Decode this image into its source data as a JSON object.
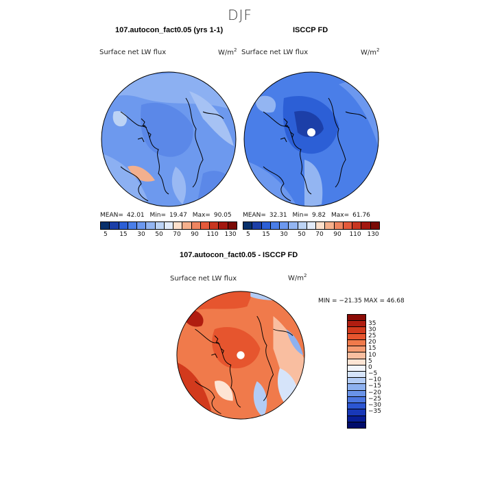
{
  "title": "DJF",
  "panels": [
    {
      "title": "107.autocon_fact0.05 (yrs 1-1)",
      "variable": "Surface net LW flux",
      "units_base": "W/m",
      "units_exp": "2",
      "stats": {
        "mean_label": "MEAN=",
        "mean": "42.01",
        "min_label": "Min=",
        "min": "19.47",
        "max_label": "Max=",
        "max": "90.05"
      }
    },
    {
      "title": "ISCCP FD",
      "variable": "Surface net LW flux",
      "units_base": "W/m",
      "units_exp": "2",
      "stats": {
        "mean_label": "MEAN=",
        "mean": "32.31",
        "min_label": "Min=",
        "min": "9.82",
        "max_label": "Max=",
        "max": "61.76"
      }
    }
  ],
  "top_colorbar": {
    "colors": [
      "#08306b",
      "#1c3fa8",
      "#2c5fd6",
      "#4a7ee8",
      "#6c98ef",
      "#93b5f2",
      "#bcd3f5",
      "#e2ebfa",
      "#fde0cc",
      "#f6b08c",
      "#ee8560",
      "#e45a3b",
      "#c83620",
      "#a3170f",
      "#7a0a05"
    ],
    "tick_labels": [
      "5",
      "15",
      "30",
      "50",
      "70",
      "90",
      "110",
      "130"
    ]
  },
  "diff_panel": {
    "title": "107.autocon_fact0.05 - ISCCP FD",
    "variable": "Surface net LW flux",
    "units_base": "W/m",
    "units_exp": "2",
    "min_max_text": "MIN = −21.35  MAX =  46.68"
  },
  "diff_colorbar": {
    "colors": [
      "#8b0c06",
      "#b01d10",
      "#d23a1d",
      "#e6552e",
      "#f07a4b",
      "#f59b72",
      "#f9bea0",
      "#fde4d4",
      "#f2f5fc",
      "#d6e4fa",
      "#b3ccf5",
      "#8db1f0",
      "#6993e8",
      "#4b76e0",
      "#2c56d2",
      "#1838b8",
      "#081e96",
      "#000c6b"
    ],
    "tick_labels": [
      "35",
      "30",
      "25",
      "20",
      "15",
      "10",
      "5",
      "0",
      "−5",
      "−10",
      "−15",
      "−20",
      "−25",
      "−30",
      "−35"
    ]
  }
}
